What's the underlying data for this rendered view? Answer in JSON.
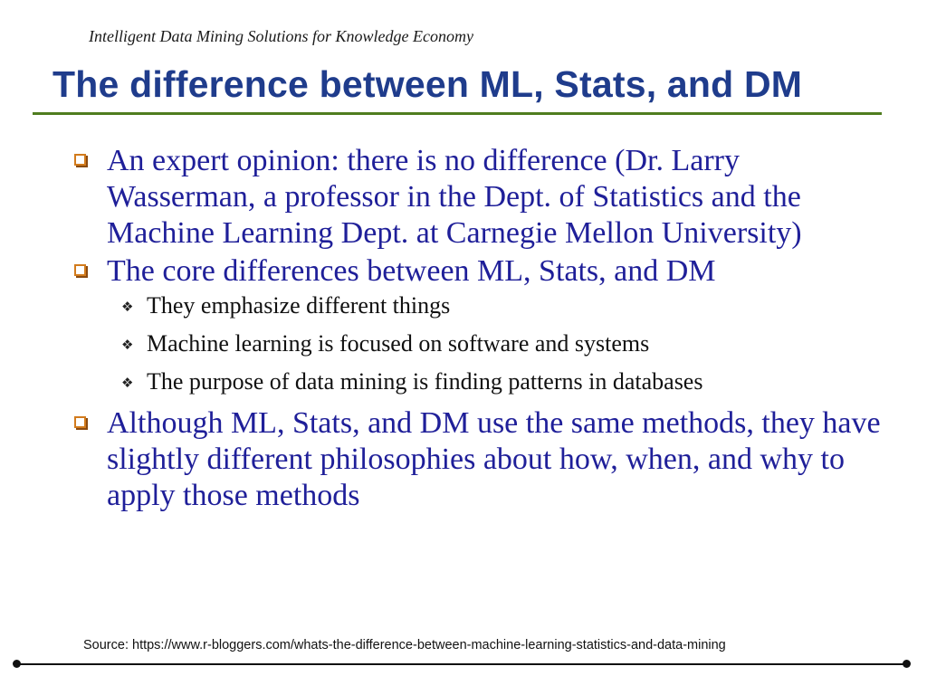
{
  "header": {
    "tagline": "Intelligent Data Mining Solutions for Knowledge Economy"
  },
  "title": "The difference between ML, Stats, and DM",
  "bullets": [
    {
      "text": "An expert opinion: there is no difference (Dr. Larry Wasserman, a professor in the Dept. of Statistics and the Machine Learning Dept. at Carnegie Mellon University)"
    },
    {
      "text": "The core differences between ML, Stats, and DM",
      "sub": [
        "They emphasize different things",
        "Machine learning is focused on software and systems",
        "The purpose of data mining is finding patterns in databases"
      ]
    },
    {
      "text": "Although ML, Stats, and DM use the same methods, they have slightly different philosophies about how, when, and why to apply those methods"
    }
  ],
  "source": "Source: https://www.r-bloggers.com/whats-the-difference-between-machine-learning-statistics-and-data-mining",
  "colors": {
    "title": "#1f3c8c",
    "title_rule": "#4f7d1f",
    "bullet_text": "#1f1f99",
    "bullet_marker": "#d27b1c",
    "sub_text": "#111111"
  },
  "icons": {
    "bullet_l1": "hollow-square-icon",
    "bullet_l2": "four-diamond-icon"
  }
}
